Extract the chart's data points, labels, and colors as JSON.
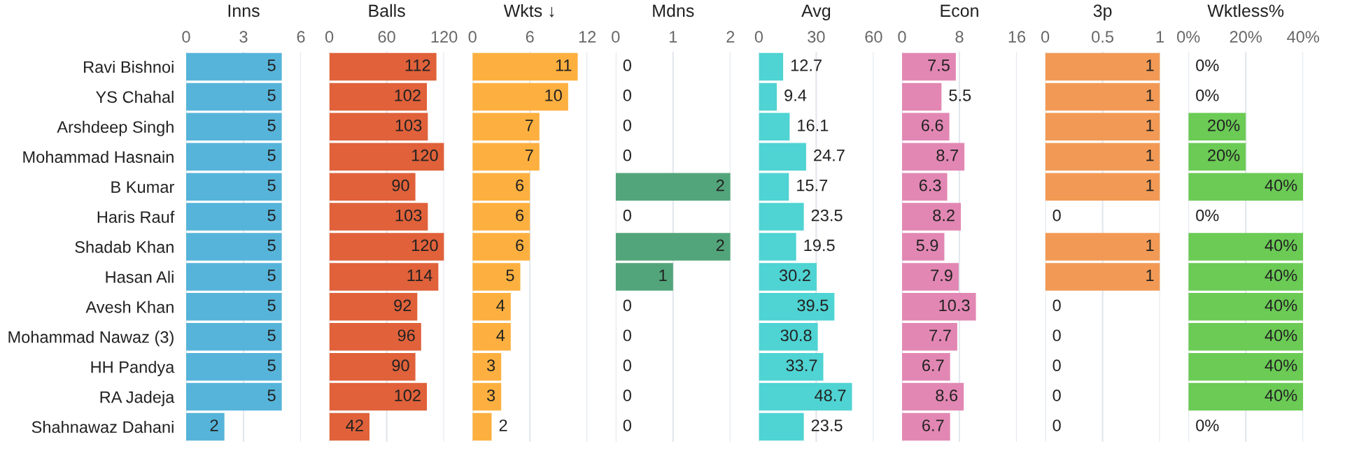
{
  "chart_data": [
    {
      "type": "bar",
      "orientation": "horizontal",
      "title": "Inns",
      "categories": [
        "Ravi Bishnoi",
        "YS Chahal",
        "Arshdeep Singh",
        "Mohammad Hasnain",
        "B Kumar",
        "Haris Rauf",
        "Shadab Khan",
        "Hasan Ali",
        "Avesh Khan",
        "Mohammad Nawaz (3)",
        "HH Pandya",
        "RA Jadeja",
        "Shahnawaz Dahani"
      ],
      "values": [
        5,
        5,
        5,
        5,
        5,
        5,
        5,
        5,
        5,
        5,
        5,
        5,
        2
      ],
      "color": "#56b4da",
      "xlim": [
        0,
        6
      ],
      "xticks": [
        0,
        3,
        6
      ],
      "grid": "x",
      "data_labels": true
    },
    {
      "type": "bar",
      "orientation": "horizontal",
      "title": "Balls",
      "categories": [
        null,
        null,
        null,
        null,
        null,
        null,
        null,
        null,
        null,
        null,
        null,
        null,
        null
      ],
      "values": [
        112,
        102,
        103,
        120,
        90,
        103,
        120,
        114,
        92,
        96,
        90,
        102,
        42
      ],
      "color": "#e0613a",
      "xlim": [
        0,
        120
      ],
      "xticks": [
        0,
        60,
        120
      ],
      "grid": "x",
      "data_labels": true,
      "tick_labels": "x"
    },
    {
      "type": "bar",
      "orientation": "horizontal",
      "title": "Wkts ↓",
      "categories": [
        null,
        null,
        null,
        null,
        null,
        null,
        null,
        null,
        null,
        null,
        null,
        null,
        null
      ],
      "values": [
        11,
        10,
        7,
        7,
        6,
        6,
        6,
        5,
        4,
        4,
        3,
        3,
        2
      ],
      "color": "#fdb03f",
      "xlim": [
        0,
        12
      ],
      "xticks": [
        0,
        6,
        12
      ],
      "grid": "x",
      "data_labels": true,
      "tick_labels": "x"
    },
    {
      "type": "bar",
      "orientation": "horizontal",
      "title": "Mdns",
      "categories": [
        null,
        null,
        null,
        null,
        null,
        null,
        null,
        null,
        null,
        null,
        null,
        null,
        null
      ],
      "values": [
        0,
        0,
        0,
        0,
        2,
        0,
        2,
        1,
        0,
        0,
        0,
        0,
        0
      ],
      "color": "#52a57a",
      "xlim": [
        0,
        2
      ],
      "xticks": [
        0,
        1,
        2
      ],
      "grid": "x",
      "data_labels": true,
      "tick_labels": "x"
    },
    {
      "type": "bar",
      "orientation": "horizontal",
      "title": "Avg",
      "categories": [
        null,
        null,
        null,
        null,
        null,
        null,
        null,
        null,
        null,
        null,
        null,
        null,
        null
      ],
      "values": [
        12.7,
        9.4,
        16.1,
        24.7,
        15.7,
        23.5,
        19.5,
        30.2,
        39.5,
        30.8,
        33.7,
        48.7,
        23.5
      ],
      "color": "#4fd3d3",
      "xlim": [
        0,
        60
      ],
      "xticks": [
        0,
        30,
        60
      ],
      "grid": "x",
      "data_labels": true,
      "tick_labels": "x"
    },
    {
      "type": "bar",
      "orientation": "horizontal",
      "title": "Econ",
      "categories": [
        null,
        null,
        null,
        null,
        null,
        null,
        null,
        null,
        null,
        null,
        null,
        null,
        null
      ],
      "values": [
        7.5,
        5.5,
        6.6,
        8.7,
        6.3,
        8.2,
        5.9,
        7.9,
        10.3,
        7.7,
        6.7,
        8.6,
        6.7
      ],
      "color": "#e287b3",
      "xlim": [
        0,
        16
      ],
      "xticks": [
        0,
        8,
        16
      ],
      "grid": "x",
      "data_labels": true,
      "tick_labels": "x"
    },
    {
      "type": "bar",
      "orientation": "horizontal",
      "title": "3p",
      "categories": [
        null,
        null,
        null,
        null,
        null,
        null,
        null,
        null,
        null,
        null,
        null,
        null,
        null
      ],
      "values": [
        1,
        1,
        1,
        1,
        1,
        0,
        1,
        1,
        0,
        0,
        0,
        0,
        0
      ],
      "color": "#f29a55",
      "xlim": [
        0,
        1
      ],
      "xticks": [
        0,
        0.5,
        1
      ],
      "grid": "x",
      "data_labels": true,
      "tick_labels": "x"
    },
    {
      "type": "bar",
      "orientation": "horizontal",
      "title": "Wktless%",
      "categories": [
        null,
        null,
        null,
        null,
        null,
        null,
        null,
        null,
        null,
        null,
        null,
        null,
        null
      ],
      "values": [
        0,
        0,
        20,
        20,
        40,
        0,
        40,
        40,
        40,
        40,
        40,
        40,
        0
      ],
      "value_labels": [
        "0%",
        "0%",
        "20%",
        "20%",
        "40%",
        "0%",
        "40%",
        "40%",
        "40%",
        "40%",
        "40%",
        "40%",
        "0%"
      ],
      "color": "#6bcb55",
      "xlim": [
        0,
        40
      ],
      "xticks": [
        {
          "value": 0,
          "label": "0%"
        },
        {
          "value": 20,
          "label": "20%"
        },
        {
          "value": 40,
          "label": "40%"
        }
      ],
      "grid": "x",
      "tick_labels": "x"
    }
  ]
}
